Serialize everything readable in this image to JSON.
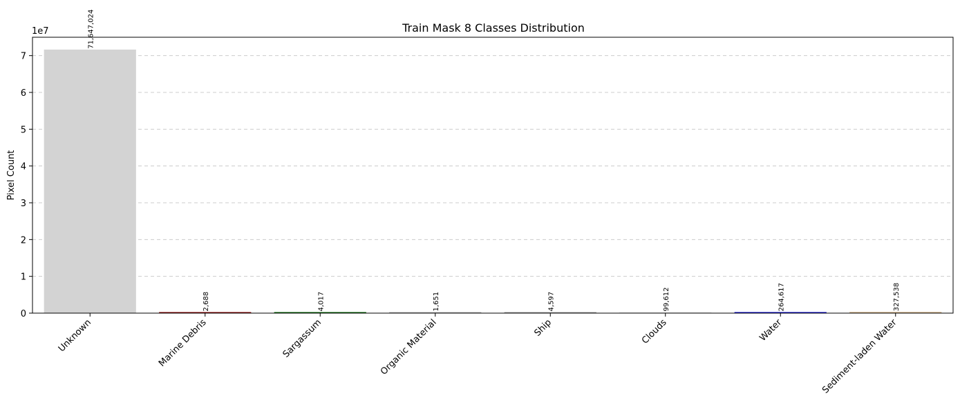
{
  "chart_data": {
    "type": "bar",
    "title": "Train Mask 8 Classes Distribution",
    "xlabel": "",
    "ylabel": "Pixel Count",
    "y_scale_label": "1e7",
    "y_scale": 10000000,
    "ylim": [
      0,
      75000000
    ],
    "yticks": [
      0,
      10000000,
      20000000,
      30000000,
      40000000,
      50000000,
      60000000,
      70000000
    ],
    "ytick_labels": [
      "0",
      "1",
      "2",
      "3",
      "4",
      "5",
      "6",
      "7"
    ],
    "grid": "y-dashed",
    "categories": [
      "Unknown",
      "Marine Debris",
      "Sargassum",
      "Organic Material",
      "Ship",
      "Clouds",
      "Water",
      "Sediment-laden Water"
    ],
    "values": [
      71647024,
      2688,
      4017,
      1651,
      4597,
      99612,
      264617,
      327538
    ],
    "value_labels": [
      "71,647,024",
      "2,688",
      "4,017",
      "1,651",
      "4,597",
      "99,612",
      "264,617",
      "327,538"
    ],
    "colors": [
      "#d3d3d3",
      "#8b0000",
      "#006400",
      "#b0b0b0",
      "#a0a0a0",
      "#e8e8e8",
      "#0000cd",
      "#d2b48c"
    ]
  }
}
